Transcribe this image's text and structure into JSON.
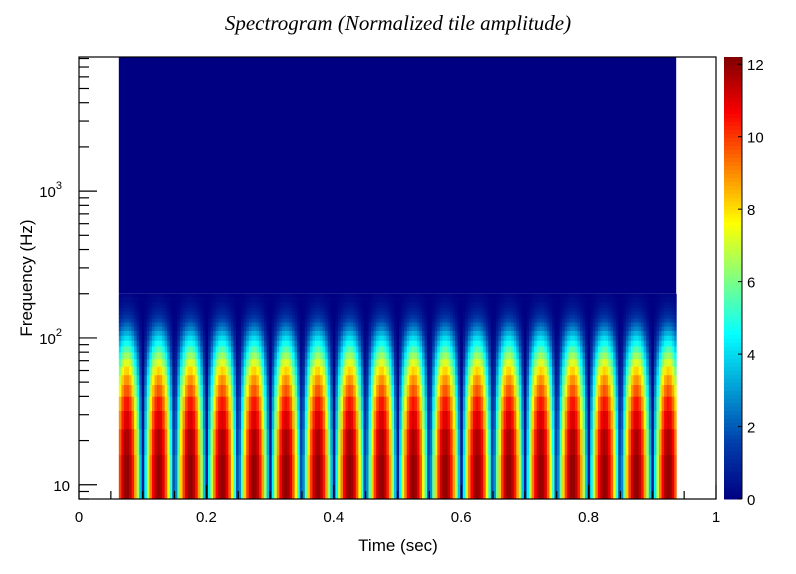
{
  "chart_data": {
    "type": "heatmap",
    "title": "Spectrogram (Normalized tile amplitude)",
    "xlabel": "Time (sec)",
    "ylabel": "Frequency (Hz)",
    "xlim": [
      0,
      1
    ],
    "ylim": [
      8,
      8192
    ],
    "y_scale": "log",
    "x_ticks": [
      "0",
      "0.2",
      "0.4",
      "0.6",
      "0.8",
      "1"
    ],
    "y_ticks": [
      {
        "base": "10",
        "exp": ""
      },
      {
        "base": "10",
        "exp": "2"
      },
      {
        "base": "10",
        "exp": "3"
      }
    ],
    "data_time_range": [
      0.0625,
      0.9375
    ],
    "freq_bin_width_hz": 8,
    "freq_bin_start_hz": 8,
    "peak_amplitude_per_bin": [
      12.0,
      11.7,
      11.1,
      10.5,
      9.7,
      9.0,
      8.2,
      7.3,
      6.5,
      5.6,
      4.8,
      4.1,
      3.4,
      2.7,
      2.2,
      1.7,
      1.3,
      1.0,
      0.8,
      0.6,
      0.5,
      0.3,
      0.3,
      0.2
    ],
    "amplitude_above_bins": 0,
    "burst_times_sec": [
      0.075,
      0.125,
      0.175,
      0.225,
      0.275,
      0.325,
      0.375,
      0.425,
      0.475,
      0.525,
      0.575,
      0.625,
      0.675,
      0.725,
      0.775,
      0.825,
      0.875,
      0.925
    ],
    "colorbar": {
      "colormap": "jet",
      "range": [
        0,
        12.2
      ],
      "ticks": [
        "0",
        "2",
        "4",
        "6",
        "8",
        "10",
        "12"
      ]
    },
    "grid": false,
    "legend": "none"
  }
}
